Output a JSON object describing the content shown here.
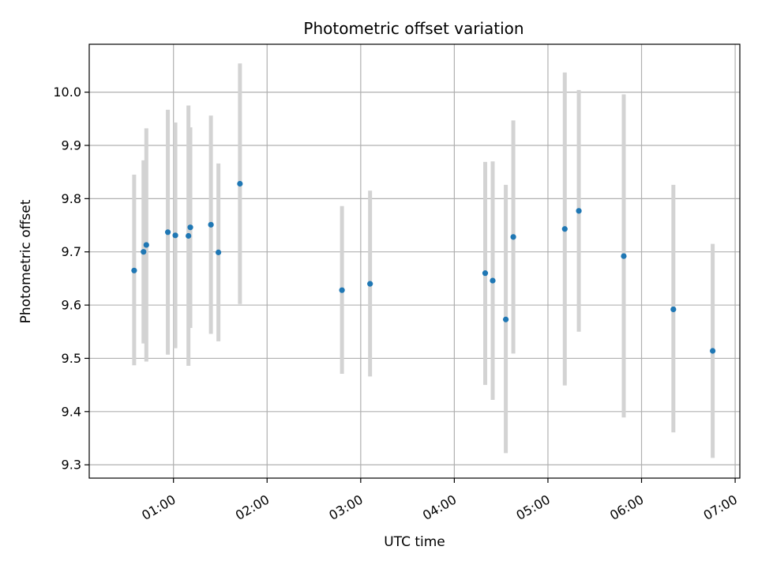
{
  "chart_data": {
    "type": "scatter",
    "title": "Photometric offset variation",
    "xlabel": "UTC time",
    "ylabel": "Photometric offset",
    "grid": true,
    "xlim": [
      0.1,
      7.05
    ],
    "ylim": [
      9.275,
      10.09
    ],
    "x_ticks": [
      {
        "value": 1,
        "label": "01:00"
      },
      {
        "value": 2,
        "label": "02:00"
      },
      {
        "value": 3,
        "label": "03:00"
      },
      {
        "value": 4,
        "label": "04:00"
      },
      {
        "value": 5,
        "label": "05:00"
      },
      {
        "value": 6,
        "label": "06:00"
      },
      {
        "value": 7,
        "label": "07:00"
      }
    ],
    "y_ticks": [
      {
        "value": 9.3,
        "label": "9.3"
      },
      {
        "value": 9.4,
        "label": "9.4"
      },
      {
        "value": 9.5,
        "label": "9.5"
      },
      {
        "value": 9.6,
        "label": "9.6"
      },
      {
        "value": 9.7,
        "label": "9.7"
      },
      {
        "value": 9.8,
        "label": "9.8"
      },
      {
        "value": 9.9,
        "label": "9.9"
      },
      {
        "value": 10.0,
        "label": "10.0"
      }
    ],
    "marker_color": "#1f77b4",
    "errorbar_color": "#d3d3d3",
    "points": [
      {
        "x": 0.58,
        "y": 9.665,
        "lo": 9.487,
        "hi": 9.845
      },
      {
        "x": 0.68,
        "y": 9.7,
        "lo": 9.528,
        "hi": 9.872
      },
      {
        "x": 0.71,
        "y": 9.713,
        "lo": 9.494,
        "hi": 9.932
      },
      {
        "x": 0.94,
        "y": 9.737,
        "lo": 9.507,
        "hi": 9.967
      },
      {
        "x": 1.02,
        "y": 9.731,
        "lo": 9.519,
        "hi": 9.943
      },
      {
        "x": 1.16,
        "y": 9.73,
        "lo": 9.486,
        "hi": 9.975
      },
      {
        "x": 1.18,
        "y": 9.746,
        "lo": 9.557,
        "hi": 9.934
      },
      {
        "x": 1.4,
        "y": 9.751,
        "lo": 9.546,
        "hi": 9.956
      },
      {
        "x": 1.48,
        "y": 9.699,
        "lo": 9.532,
        "hi": 9.866
      },
      {
        "x": 1.71,
        "y": 9.828,
        "lo": 9.602,
        "hi": 10.054
      },
      {
        "x": 2.8,
        "y": 9.628,
        "lo": 9.471,
        "hi": 9.786
      },
      {
        "x": 3.1,
        "y": 9.64,
        "lo": 9.466,
        "hi": 9.815
      },
      {
        "x": 4.33,
        "y": 9.66,
        "lo": 9.45,
        "hi": 9.869
      },
      {
        "x": 4.41,
        "y": 9.646,
        "lo": 9.422,
        "hi": 9.87
      },
      {
        "x": 4.55,
        "y": 9.573,
        "lo": 9.322,
        "hi": 9.826
      },
      {
        "x": 4.63,
        "y": 9.728,
        "lo": 9.509,
        "hi": 9.947
      },
      {
        "x": 5.18,
        "y": 9.743,
        "lo": 9.449,
        "hi": 10.037
      },
      {
        "x": 5.33,
        "y": 9.777,
        "lo": 9.55,
        "hi": 10.004
      },
      {
        "x": 5.81,
        "y": 9.692,
        "lo": 9.389,
        "hi": 9.996
      },
      {
        "x": 6.34,
        "y": 9.592,
        "lo": 9.361,
        "hi": 9.826
      },
      {
        "x": 6.76,
        "y": 9.514,
        "lo": 9.313,
        "hi": 9.715
      }
    ]
  }
}
